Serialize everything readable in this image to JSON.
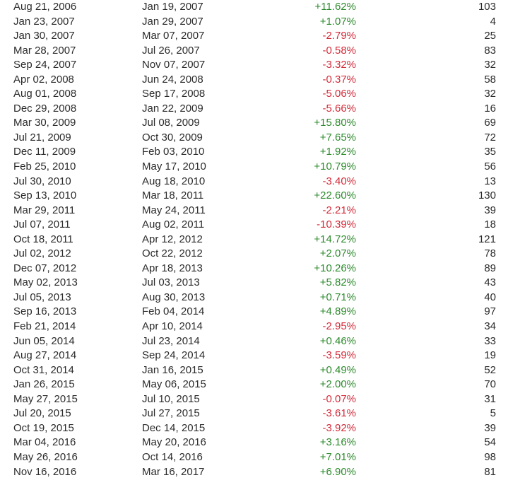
{
  "colors": {
    "positive": "#2e8b2e",
    "negative": "#d42b3a",
    "text": "#2b2b2b"
  },
  "rows": [
    {
      "entry": "Aug 21, 2006",
      "exit": "Jan 19, 2007",
      "return": "+11.62%",
      "days": "103"
    },
    {
      "entry": "Jan 23, 2007",
      "exit": "Jan 29, 2007",
      "return": "+1.07%",
      "days": "4"
    },
    {
      "entry": "Jan 30, 2007",
      "exit": "Mar 07, 2007",
      "return": "-2.79%",
      "days": "25"
    },
    {
      "entry": "Mar 28, 2007",
      "exit": "Jul 26, 2007",
      "return": "-0.58%",
      "days": "83"
    },
    {
      "entry": "Sep 24, 2007",
      "exit": "Nov 07, 2007",
      "return": "-3.32%",
      "days": "32"
    },
    {
      "entry": "Apr 02, 2008",
      "exit": "Jun 24, 2008",
      "return": "-0.37%",
      "days": "58"
    },
    {
      "entry": "Aug 01, 2008",
      "exit": "Sep 17, 2008",
      "return": "-5.06%",
      "days": "32"
    },
    {
      "entry": "Dec 29, 2008",
      "exit": "Jan 22, 2009",
      "return": "-5.66%",
      "days": "16"
    },
    {
      "entry": "Mar 30, 2009",
      "exit": "Jul 08, 2009",
      "return": "+15.80%",
      "days": "69"
    },
    {
      "entry": "Jul 21, 2009",
      "exit": "Oct 30, 2009",
      "return": "+7.65%",
      "days": "72"
    },
    {
      "entry": "Dec 11, 2009",
      "exit": "Feb 03, 2010",
      "return": "+1.92%",
      "days": "35"
    },
    {
      "entry": "Feb 25, 2010",
      "exit": "May 17, 2010",
      "return": "+10.79%",
      "days": "56"
    },
    {
      "entry": "Jul 30, 2010",
      "exit": "Aug 18, 2010",
      "return": "-3.40%",
      "days": "13"
    },
    {
      "entry": "Sep 13, 2010",
      "exit": "Mar 18, 2011",
      "return": "+22.60%",
      "days": "130"
    },
    {
      "entry": "Mar 29, 2011",
      "exit": "May 24, 2011",
      "return": "-2.21%",
      "days": "39"
    },
    {
      "entry": "Jul 07, 2011",
      "exit": "Aug 02, 2011",
      "return": "-10.39%",
      "days": "18"
    },
    {
      "entry": "Oct 18, 2011",
      "exit": "Apr 12, 2012",
      "return": "+14.72%",
      "days": "121"
    },
    {
      "entry": "Jul 02, 2012",
      "exit": "Oct 22, 2012",
      "return": "+2.07%",
      "days": "78"
    },
    {
      "entry": "Dec 07, 2012",
      "exit": "Apr 18, 2013",
      "return": "+10.26%",
      "days": "89"
    },
    {
      "entry": "May 02, 2013",
      "exit": "Jul 03, 2013",
      "return": "+5.82%",
      "days": "43"
    },
    {
      "entry": "Jul 05, 2013",
      "exit": "Aug 30, 2013",
      "return": "+0.71%",
      "days": "40"
    },
    {
      "entry": "Sep 16, 2013",
      "exit": "Feb 04, 2014",
      "return": "+4.89%",
      "days": "97"
    },
    {
      "entry": "Feb 21, 2014",
      "exit": "Apr 10, 2014",
      "return": "-2.95%",
      "days": "34"
    },
    {
      "entry": "Jun 05, 2014",
      "exit": "Jul 23, 2014",
      "return": "+0.46%",
      "days": "33"
    },
    {
      "entry": "Aug 27, 2014",
      "exit": "Sep 24, 2014",
      "return": "-3.59%",
      "days": "19"
    },
    {
      "entry": "Oct 31, 2014",
      "exit": "Jan 16, 2015",
      "return": "+0.49%",
      "days": "52"
    },
    {
      "entry": "Jan 26, 2015",
      "exit": "May 06, 2015",
      "return": "+2.00%",
      "days": "70"
    },
    {
      "entry": "May 27, 2015",
      "exit": "Jul 10, 2015",
      "return": "-0.07%",
      "days": "31"
    },
    {
      "entry": "Jul 20, 2015",
      "exit": "Jul 27, 2015",
      "return": "-3.61%",
      "days": "5"
    },
    {
      "entry": "Oct 19, 2015",
      "exit": "Dec 14, 2015",
      "return": "-3.92%",
      "days": "39"
    },
    {
      "entry": "Mar 04, 2016",
      "exit": "May 20, 2016",
      "return": "+3.16%",
      "days": "54"
    },
    {
      "entry": "May 26, 2016",
      "exit": "Oct 14, 2016",
      "return": "+7.01%",
      "days": "98"
    },
    {
      "entry": "Nov 16, 2016",
      "exit": "Mar 16, 2017",
      "return": "+6.90%",
      "days": "81"
    }
  ]
}
